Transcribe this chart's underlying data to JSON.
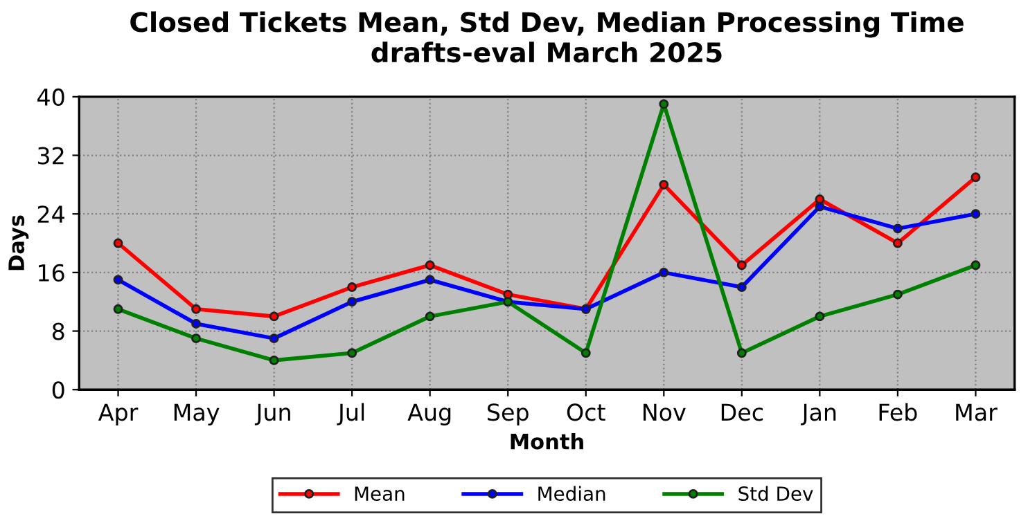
{
  "chart_data": {
    "type": "line",
    "title": "Closed Tickets Mean, Std Dev, Median Processing Time\ndrafts-eval March 2025",
    "xlabel": "Month",
    "ylabel": "Days",
    "categories": [
      "Apr",
      "May",
      "Jun",
      "Jul",
      "Aug",
      "Sep",
      "Oct",
      "Nov",
      "Dec",
      "Jan",
      "Feb",
      "Mar"
    ],
    "series": [
      {
        "name": "Mean",
        "color": "#ff0000",
        "values": [
          20,
          11,
          10,
          14,
          17,
          13,
          11,
          28,
          17,
          26,
          20,
          29
        ]
      },
      {
        "name": "Median",
        "color": "#0000ff",
        "values": [
          15,
          9,
          7,
          12,
          15,
          12,
          11,
          16,
          14,
          25,
          22,
          24
        ]
      },
      {
        "name": "Std Dev",
        "color": "#008000",
        "values": [
          11,
          7,
          4,
          5,
          10,
          12,
          5,
          39,
          5,
          10,
          13,
          17
        ]
      }
    ],
    "ylim": [
      0,
      40
    ],
    "yticks": [
      0,
      8,
      16,
      24,
      32,
      40
    ],
    "grid": true,
    "legend": "bottom",
    "marker": "circle",
    "line_style": "solid"
  }
}
